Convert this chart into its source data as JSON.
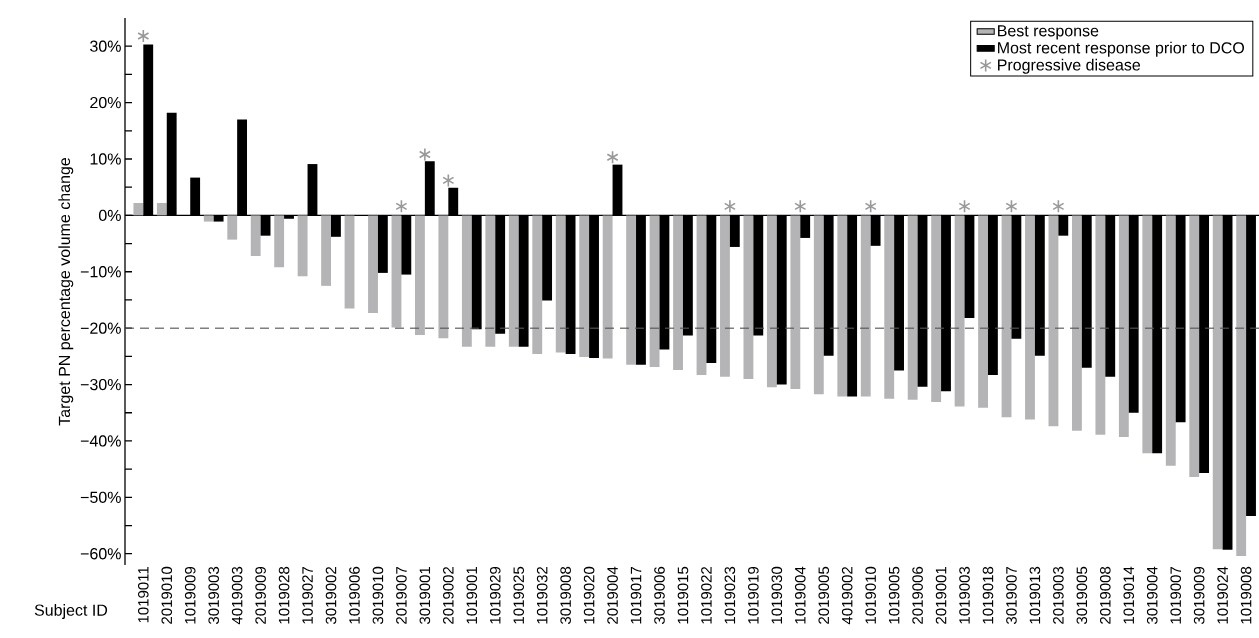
{
  "chart_data": {
    "type": "bar",
    "xlabel": "Subject ID",
    "ylabel": "Target PN percentage volume change",
    "categories": [
      "1019011",
      "2019010",
      "1019009",
      "3019003",
      "4019003",
      "2019009",
      "1019028",
      "1019027",
      "3019002",
      "1019006",
      "3019010",
      "2019007",
      "3019001",
      "2019002",
      "1019001",
      "1019029",
      "1019025",
      "1019032",
      "3019008",
      "1019020",
      "2019004",
      "1019017",
      "3019006",
      "1019015",
      "1019022",
      "1019023",
      "1019019",
      "1019030",
      "1019004",
      "2019005",
      "4019002",
      "1019010",
      "1019005",
      "2019006",
      "2019001",
      "1019003",
      "1019018",
      "3019007",
      "1019013",
      "2019003",
      "3019005",
      "2019008",
      "1019014",
      "3019004",
      "1019007",
      "3019009",
      "1019024",
      "1019008"
    ],
    "series": [
      {
        "name": "Best response",
        "color": "#b4b4b6",
        "values": [
          2.2,
          2.2,
          null,
          -1.1,
          -4.3,
          -7.2,
          -9.2,
          -10.8,
          -12.5,
          -16.5,
          -17.3,
          -19.9,
          -21.2,
          -21.8,
          -23.3,
          -23.3,
          -23.3,
          -24.6,
          -24.3,
          -25.1,
          -25.4,
          -26.5,
          -26.9,
          -27.4,
          -28.3,
          -28.6,
          -29.0,
          -30.5,
          -30.8,
          -31.7,
          -32.1,
          -32.1,
          -32.5,
          -32.7,
          -33.1,
          -33.9,
          -34.1,
          -35.8,
          -36.2,
          -37.4,
          -38.2,
          -38.9,
          -39.3,
          -42.2,
          -44.4,
          -46.4,
          -59.2,
          -60.4
        ]
      },
      {
        "name": "Most recent response prior to DCO",
        "color": "#000000",
        "values": [
          30.3,
          18.2,
          6.7,
          -1.1,
          17.0,
          -3.6,
          -0.6,
          9.1,
          -3.8,
          null,
          -10.2,
          -10.5,
          9.6,
          4.9,
          -20.2,
          -21.0,
          -23.3,
          -15.1,
          -24.6,
          -25.3,
          9.0,
          -26.5,
          -23.8,
          -21.3,
          -26.2,
          -5.6,
          -21.3,
          -30.0,
          -4.0,
          -24.9,
          -32.1,
          -5.4,
          -27.5,
          -30.4,
          -31.2,
          -18.2,
          -28.3,
          -21.9,
          -24.9,
          -3.6,
          -27.0,
          -28.6,
          -35.0,
          -42.2,
          -36.7,
          -45.7,
          -59.3,
          -53.3
        ]
      },
      {
        "name": "Progressive disease",
        "type": "scatter",
        "marker": "cross",
        "color": "#999999",
        "values": [
          31.8,
          null,
          null,
          null,
          null,
          null,
          null,
          null,
          null,
          null,
          null,
          1.6,
          10.8,
          6.2,
          null,
          null,
          null,
          null,
          null,
          null,
          10.3,
          null,
          null,
          null,
          null,
          1.6,
          null,
          null,
          1.6,
          null,
          null,
          1.6,
          null,
          null,
          null,
          1.6,
          null,
          1.6,
          null,
          1.6,
          null,
          null,
          null,
          null,
          null,
          null,
          null,
          null
        ]
      }
    ],
    "ylim": [
      -62,
      35
    ],
    "yticks": [
      {
        "value": 30,
        "label": "30%"
      },
      {
        "value": 25,
        "label": null
      },
      {
        "value": 20,
        "label": "20%"
      },
      {
        "value": 15,
        "label": null
      },
      {
        "value": 10,
        "label": "10%"
      },
      {
        "value": 5,
        "label": null
      },
      {
        "value": 0,
        "label": "0%"
      },
      {
        "value": -5,
        "label": null
      },
      {
        "value": -10,
        "label": "−10%"
      },
      {
        "value": -15,
        "label": null
      },
      {
        "value": -20,
        "label": "−20%"
      },
      {
        "value": -25,
        "label": null
      },
      {
        "value": -30,
        "label": "−30%"
      },
      {
        "value": -35,
        "label": null
      },
      {
        "value": -40,
        "label": "−40%"
      },
      {
        "value": -45,
        "label": null
      },
      {
        "value": -50,
        "label": "−50%"
      },
      {
        "value": -55,
        "label": null
      },
      {
        "value": -60,
        "label": "−60%"
      }
    ],
    "ref_lines": [
      {
        "axis": "y",
        "value": -20,
        "color": "#555555",
        "line_style": "dashed"
      }
    ],
    "legend": "top right",
    "grid": false
  }
}
